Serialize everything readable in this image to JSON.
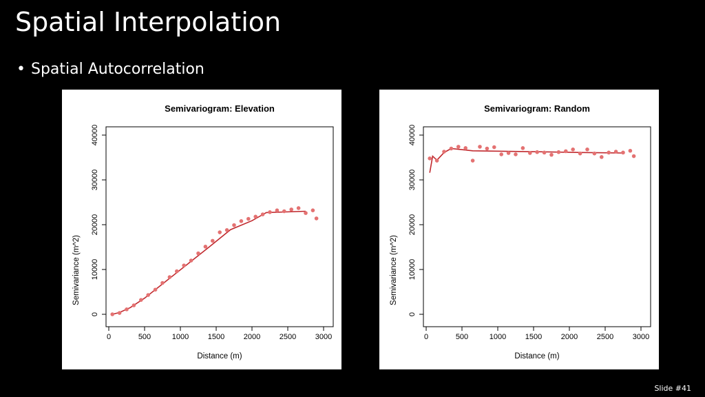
{
  "slide": {
    "title": "Spatial Interpolation",
    "bullet": "Spatial Autocorrelation",
    "bullet_marker": "•",
    "number": "Slide #41"
  },
  "colors": {
    "background": "#000000",
    "text": "#ffffff",
    "points": "#e47272",
    "line": "#c0282d"
  },
  "chart_data": [
    {
      "type": "scatter",
      "title": "Semivariogram: Elevation",
      "xlabel": "Distance (m)",
      "ylabel": "Semivariance (m^2)",
      "xlim": [
        0,
        3000
      ],
      "ylim": [
        0,
        40000
      ],
      "x_ticks": [
        "0",
        "500",
        "1000",
        "1500",
        "2000",
        "2500",
        "3000"
      ],
      "y_ticks": [
        "0",
        "10000",
        "20000",
        "30000",
        "40000"
      ],
      "grid": false,
      "points": [
        [
          50,
          0
        ],
        [
          150,
          300
        ],
        [
          250,
          1100
        ],
        [
          350,
          2000
        ],
        [
          450,
          3200
        ],
        [
          550,
          4300
        ],
        [
          650,
          5500
        ],
        [
          750,
          7000
        ],
        [
          850,
          8300
        ],
        [
          950,
          9600
        ],
        [
          1050,
          10900
        ],
        [
          1150,
          12000
        ],
        [
          1250,
          13600
        ],
        [
          1350,
          15100
        ],
        [
          1450,
          16400
        ],
        [
          1550,
          18300
        ],
        [
          1650,
          18800
        ],
        [
          1750,
          19900
        ],
        [
          1850,
          20800
        ],
        [
          1950,
          21300
        ],
        [
          2050,
          21800
        ],
        [
          2150,
          22300
        ],
        [
          2250,
          22800
        ],
        [
          2350,
          23200
        ],
        [
          2450,
          23000
        ],
        [
          2550,
          23400
        ],
        [
          2650,
          23700
        ],
        [
          2750,
          22600
        ],
        [
          2850,
          23200
        ],
        [
          2900,
          21400
        ]
      ],
      "model_line": [
        [
          50,
          0
        ],
        [
          150,
          400
        ],
        [
          300,
          1500
        ],
        [
          500,
          3600
        ],
        [
          800,
          7400
        ],
        [
          1100,
          11200
        ],
        [
          1400,
          15000
        ],
        [
          1700,
          18900
        ],
        [
          2000,
          20900
        ],
        [
          2200,
          22700
        ],
        [
          2750,
          23000
        ]
      ]
    },
    {
      "type": "scatter",
      "title": "Semivariogram: Random",
      "xlabel": "Distance (m)",
      "ylabel": "Semivariance (m^2)",
      "xlim": [
        0,
        3000
      ],
      "ylim": [
        0,
        40000
      ],
      "x_ticks": [
        "0",
        "500",
        "1000",
        "1500",
        "2000",
        "2500",
        "3000"
      ],
      "y_ticks": [
        "0",
        "10000",
        "20000",
        "30000",
        "40000"
      ],
      "grid": false,
      "points": [
        [
          50,
          34800
        ],
        [
          150,
          34300
        ],
        [
          250,
          36300
        ],
        [
          350,
          37000
        ],
        [
          450,
          37400
        ],
        [
          550,
          37100
        ],
        [
          650,
          34300
        ],
        [
          750,
          37400
        ],
        [
          850,
          37000
        ],
        [
          950,
          37300
        ],
        [
          1050,
          35700
        ],
        [
          1150,
          36000
        ],
        [
          1250,
          35700
        ],
        [
          1350,
          37100
        ],
        [
          1450,
          36000
        ],
        [
          1550,
          36200
        ],
        [
          1650,
          36100
        ],
        [
          1750,
          35600
        ],
        [
          1850,
          36200
        ],
        [
          1950,
          36400
        ],
        [
          2050,
          36800
        ],
        [
          2150,
          35900
        ],
        [
          2250,
          36800
        ],
        [
          2350,
          35900
        ],
        [
          2450,
          35100
        ],
        [
          2550,
          36100
        ],
        [
          2650,
          36300
        ],
        [
          2750,
          36100
        ],
        [
          2850,
          36500
        ],
        [
          2900,
          35300
        ]
      ],
      "model_line": [
        [
          50,
          31600
        ],
        [
          90,
          35300
        ],
        [
          150,
          34400
        ],
        [
          250,
          36100
        ],
        [
          350,
          37000
        ],
        [
          650,
          36500
        ],
        [
          1500,
          36300
        ],
        [
          2200,
          36100
        ],
        [
          2750,
          36000
        ]
      ]
    }
  ]
}
